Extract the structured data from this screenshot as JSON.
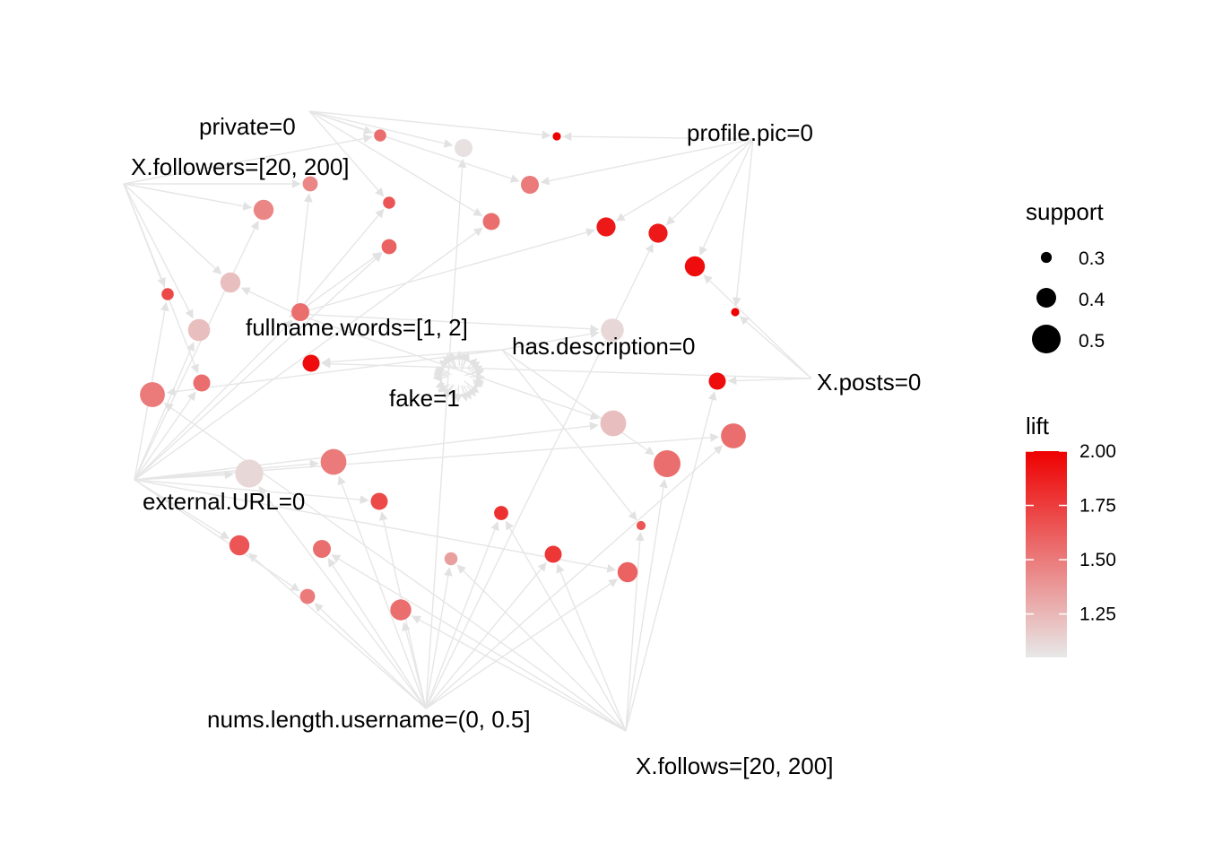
{
  "chart_data": {
    "type": "network",
    "items": [
      {
        "id": "private",
        "label": "private=0"
      },
      {
        "id": "followers",
        "label": "X.followers=[20, 200]"
      },
      {
        "id": "profilepic",
        "label": "profile.pic=0"
      },
      {
        "id": "fullname",
        "label": "fullname.words=[1, 2]"
      },
      {
        "id": "hasdesc",
        "label": "has.description=0"
      },
      {
        "id": "fake",
        "label": "fake=1"
      },
      {
        "id": "posts",
        "label": "X.posts=0"
      },
      {
        "id": "exturl",
        "label": "external.URL=0"
      },
      {
        "id": "numslen",
        "label": "nums.length.username=(0, 0.5]"
      },
      {
        "id": "follows",
        "label": "X.follows=[20, 200]"
      }
    ],
    "rules": [
      {
        "id": "r1",
        "support": 0.3,
        "lift": 1.55,
        "lhs": [
          "private",
          "followers"
        ]
      },
      {
        "id": "r2",
        "support": 0.36,
        "lift": 1.08,
        "lhs": [
          "private",
          "numslen"
        ]
      },
      {
        "id": "r3",
        "support": 0.26,
        "lift": 2.0,
        "lhs": [
          "profilepic",
          "private"
        ]
      },
      {
        "id": "r4",
        "support": 0.36,
        "lift": 1.5,
        "lhs": [
          "private",
          "profilepic"
        ]
      },
      {
        "id": "r5",
        "support": 0.33,
        "lift": 1.45,
        "lhs": [
          "followers",
          "fullname"
        ]
      },
      {
        "id": "r6",
        "support": 0.3,
        "lift": 1.65,
        "lhs": [
          "private",
          "fullname"
        ]
      },
      {
        "id": "r7",
        "support": 0.38,
        "lift": 1.45,
        "lhs": [
          "followers",
          "exturl"
        ]
      },
      {
        "id": "r8",
        "support": 0.35,
        "lift": 1.55,
        "lhs": [
          "private",
          "exturl"
        ]
      },
      {
        "id": "r9",
        "support": 0.37,
        "lift": 1.9,
        "lhs": [
          "profilepic",
          "fullname"
        ]
      },
      {
        "id": "r10",
        "support": 0.37,
        "lift": 1.9,
        "lhs": [
          "profilepic",
          "numslen"
        ]
      },
      {
        "id": "r11",
        "support": 0.38,
        "lift": 1.95,
        "lhs": [
          "profilepic",
          "posts"
        ]
      },
      {
        "id": "r12",
        "support": 0.3,
        "lift": 1.7,
        "lhs": [
          "followers",
          "exturl"
        ]
      },
      {
        "id": "r13",
        "support": 0.38,
        "lift": 1.22,
        "lhs": [
          "followers",
          "fullname"
        ]
      },
      {
        "id": "r14",
        "support": 0.33,
        "lift": 1.6,
        "lhs": [
          "fullname",
          "exturl"
        ]
      },
      {
        "id": "r15",
        "support": 0.26,
        "lift": 2.0,
        "lhs": [
          "profilepic",
          "posts"
        ]
      },
      {
        "id": "r16",
        "support": 0.41,
        "lift": 1.12,
        "lhs": [
          "fullname",
          "hasdesc"
        ]
      },
      {
        "id": "r17",
        "support": 0.4,
        "lift": 1.22,
        "lhs": [
          "followers",
          "exturl"
        ]
      },
      {
        "id": "r18",
        "support": 0.36,
        "lift": 1.55,
        "lhs": [
          "fullname",
          "exturl"
        ]
      },
      {
        "id": "r19",
        "support": 0.35,
        "lift": 1.55,
        "lhs": [
          "followers",
          "exturl"
        ]
      },
      {
        "id": "r20",
        "support": 0.35,
        "lift": 1.95,
        "lhs": [
          "posts",
          "hasdesc"
        ]
      },
      {
        "id": "r21",
        "support": 0.43,
        "lift": 1.5,
        "lhs": [
          "hasdesc",
          "follows"
        ]
      },
      {
        "id": "r22",
        "support": 0.35,
        "lift": 1.95,
        "lhs": [
          "posts",
          "follows"
        ]
      },
      {
        "id": "r23",
        "support": 0.44,
        "lift": 1.22,
        "lhs": [
          "exturl",
          "fullname"
        ]
      },
      {
        "id": "r24",
        "support": 0.43,
        "lift": 1.55,
        "lhs": [
          "exturl",
          "numslen"
        ]
      },
      {
        "id": "r25",
        "support": 0.44,
        "lift": 1.5,
        "lhs": [
          "exturl",
          "numslen"
        ]
      },
      {
        "id": "r26",
        "support": 0.45,
        "lift": 1.55,
        "lhs": [
          "hasdesc",
          "follows"
        ]
      },
      {
        "id": "r27",
        "support": 0.46,
        "lift": 1.12,
        "lhs": [
          "exturl",
          "numslen"
        ]
      },
      {
        "id": "r28",
        "support": 0.35,
        "lift": 1.7,
        "lhs": [
          "exturl",
          "numslen"
        ]
      },
      {
        "id": "r29",
        "support": 0.32,
        "lift": 1.8,
        "lhs": [
          "numslen",
          "follows"
        ]
      },
      {
        "id": "r30",
        "support": 0.27,
        "lift": 1.65,
        "lhs": [
          "follows",
          "hasdesc"
        ]
      },
      {
        "id": "r31",
        "support": 0.38,
        "lift": 1.65,
        "lhs": [
          "exturl",
          "numslen"
        ]
      },
      {
        "id": "r32",
        "support": 0.36,
        "lift": 1.55,
        "lhs": [
          "numslen",
          "follows"
        ]
      },
      {
        "id": "r33",
        "support": 0.35,
        "lift": 1.78,
        "lhs": [
          "numslen",
          "follows"
        ]
      },
      {
        "id": "r34",
        "support": 0.31,
        "lift": 1.35,
        "lhs": [
          "follows",
          "numslen"
        ]
      },
      {
        "id": "r35",
        "support": 0.38,
        "lift": 1.6,
        "lhs": [
          "exturl",
          "numslen"
        ]
      },
      {
        "id": "r36",
        "support": 0.33,
        "lift": 1.5,
        "lhs": [
          "numslen",
          "exturl"
        ]
      },
      {
        "id": "r37",
        "support": 0.39,
        "lift": 1.55,
        "lhs": [
          "numslen",
          "follows"
        ]
      }
    ],
    "rhs": "fake",
    "legend": {
      "size_title": "support",
      "size_values": [
        "0.3",
        "0.4",
        "0.5"
      ],
      "color_title": "lift",
      "color_ticks": [
        "2.00",
        "1.75",
        "1.50",
        "1.25"
      ],
      "color_range": [
        1.05,
        2.0
      ],
      "color_low": "#e8e8e8",
      "color_high": "#ee0000",
      "position": "right"
    },
    "edge_color": "#e6e6e6"
  }
}
